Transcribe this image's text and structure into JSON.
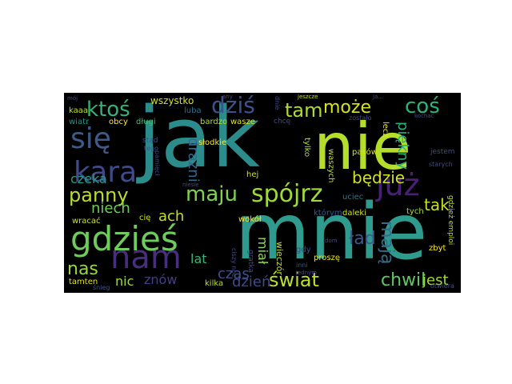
{
  "words": [
    {
      "id": "jak",
      "text": "jak",
      "color": "#2c8c8c"
    },
    {
      "id": "nie",
      "text": "nie",
      "color": "#b4dd2c"
    },
    {
      "id": "mnie",
      "text": "mnie",
      "color": "#2f9a8e"
    },
    {
      "id": "nam",
      "text": "nam",
      "color": "#472f7d"
    },
    {
      "id": "gdzies",
      "text": "gdzieś",
      "color": "#6ccd5a"
    },
    {
      "id": "juz",
      "text": "już",
      "color": "#482173"
    },
    {
      "id": "kara",
      "text": "kara",
      "color": "#3e4a89"
    },
    {
      "id": "sie",
      "text": "się",
      "color": "#3d5b8a"
    },
    {
      "id": "maju",
      "text": "maju",
      "color": "#7fd34e"
    },
    {
      "id": "spojrz",
      "text": "spójrz",
      "color": "#a0da39"
    },
    {
      "id": "cos",
      "text": "coś",
      "color": "#2db27d"
    },
    {
      "id": "ktos",
      "text": "ktoś",
      "color": "#33b27a"
    },
    {
      "id": "dzis",
      "text": "dziś",
      "color": "#3b528b"
    },
    {
      "id": "tam",
      "text": "tam",
      "color": "#addc30"
    },
    {
      "id": "moze",
      "text": "może",
      "color": "#d8e219"
    },
    {
      "id": "panny",
      "text": "panny",
      "color": "#b8de29"
    },
    {
      "id": "swiat",
      "text": "świat",
      "color": "#bddf26"
    },
    {
      "id": "chwil",
      "text": "chwil",
      "color": "#5ec962"
    },
    {
      "id": "jest",
      "text": "jest",
      "color": "#9bd93c"
    },
    {
      "id": "nas",
      "text": "nas",
      "color": "#95d840"
    },
    {
      "id": "niech",
      "text": "niech",
      "color": "#6ece58"
    },
    {
      "id": "lad",
      "text": "ład",
      "color": "#38598c"
    },
    {
      "id": "maja",
      "text": "mają",
      "color": "#2f6c8e"
    },
    {
      "id": "tak",
      "text": "tak",
      "color": "#c8e020"
    },
    {
      "id": "bedzie",
      "text": "będzie",
      "color": "#d2e21b"
    },
    {
      "id": "piekny",
      "text": "piękny",
      "color": "#29af7f"
    },
    {
      "id": "czeka",
      "text": "czeka",
      "color": "#1f9e89"
    },
    {
      "id": "drazni",
      "text": "drażni",
      "color": "#31688e"
    },
    {
      "id": "ach",
      "text": "ach",
      "color": "#c2df23"
    },
    {
      "id": "czas",
      "text": "czas",
      "color": "#3b528b"
    },
    {
      "id": "dzien",
      "text": "dzień",
      "color": "#3e4a89"
    },
    {
      "id": "nic",
      "text": "nic",
      "color": "#9fda3a"
    },
    {
      "id": "znow",
      "text": "znów",
      "color": "#433e85"
    },
    {
      "id": "lat",
      "text": "lat",
      "color": "#35b779"
    },
    {
      "id": "mial",
      "text": "miał",
      "color": "#8ed645"
    },
    {
      "id": "wieczor",
      "text": "wieczór",
      "color": "#c5e021"
    },
    {
      "id": "wszystko",
      "text": "wszystko",
      "color": "#d0e11c"
    },
    {
      "id": "luba",
      "text": "luba",
      "color": "#2e6f8e"
    },
    {
      "id": "wiatr",
      "text": "wiatr",
      "color": "#21918c"
    },
    {
      "id": "obcy",
      "text": "obcy",
      "color": "#fde725"
    },
    {
      "id": "dlugi",
      "text": "długi",
      "color": "#42be71"
    },
    {
      "id": "bardzo",
      "text": "bardzo",
      "color": "#b5de2b"
    },
    {
      "id": "wasze",
      "text": "wasze",
      "color": "#dde318"
    },
    {
      "id": "slodkie",
      "text": "słodkie",
      "color": "#fde725"
    },
    {
      "id": "kaaa",
      "text": "kaaa",
      "color": "#c0df25"
    },
    {
      "id": "wracac",
      "text": "wracać",
      "color": "#cde11d"
    },
    {
      "id": "cie",
      "text": "cię",
      "color": "#d5e21a"
    },
    {
      "id": "tamten",
      "text": "tamten",
      "color": "#e5e419"
    },
    {
      "id": "kilka",
      "text": "kilka",
      "color": "#bade28"
    },
    {
      "id": "gdy",
      "text": "gdy",
      "color": "#3f4889"
    },
    {
      "id": "prosze",
      "text": "proszę",
      "color": "#f1e51d"
    },
    {
      "id": "zbyt",
      "text": "zbyt",
      "color": "#fde725"
    },
    {
      "id": "daleki",
      "text": "daleki",
      "color": "#d0e11c"
    },
    {
      "id": "ktorym",
      "text": "którym",
      "color": "#39558c"
    },
    {
      "id": "tych",
      "text": "tych",
      "color": "#a2da37"
    },
    {
      "id": "uciec",
      "text": "uciec",
      "color": "#2a788e"
    },
    {
      "id": "lecz",
      "text": "lecz",
      "color": "#e2e418"
    },
    {
      "id": "pasow",
      "text": "pasów",
      "color": "#d8e219"
    },
    {
      "id": "tylko",
      "text": "tylko",
      "color": "#b2dd2d"
    },
    {
      "id": "waszych",
      "text": "waszych",
      "color": "#bade28"
    },
    {
      "id": "hej",
      "text": "hej",
      "color": "#d5e21a"
    },
    {
      "id": "wokol",
      "text": "wokół",
      "color": "#fde725"
    },
    {
      "id": "chce",
      "text": "chcę",
      "color": "#3f4788"
    },
    {
      "id": "zostalo",
      "text": "zostało",
      "color": "#3e4989"
    },
    {
      "id": "jestem",
      "text": "jestem",
      "color": "#3e4989"
    },
    {
      "id": "gdziez_emploi",
      "text": "gdzież emploi",
      "color": "#c2df23"
    },
    {
      "id": "gratka",
      "text": "gratka",
      "color": "#3d4e8a"
    },
    {
      "id": "ciszy_noc",
      "text": "ciszy noc",
      "color": "#3e4a89"
    },
    {
      "id": "inni",
      "text": "inni",
      "color": "#3b528b"
    },
    {
      "id": "jednym",
      "text": "jednym",
      "color": "#3e4a89"
    },
    {
      "id": "snieg",
      "text": "śnieg",
      "color": "#3b528b"
    },
    {
      "id": "dom",
      "text": "dom",
      "color": "#3f4889"
    },
    {
      "id": "otwiera",
      "text": "otwiera",
      "color": "#3e4a89"
    },
    {
      "id": "starych",
      "text": "starych",
      "color": "#3e4a89"
    },
    {
      "id": "stad",
      "text": "stąd",
      "color": "#3b528b"
    },
    {
      "id": "tego",
      "text": "tego",
      "color": "#3b528b"
    },
    {
      "id": "pamieci",
      "text": "pamięci",
      "color": "#3e4a89"
    },
    {
      "id": "niesie",
      "text": "niesie",
      "color": "#3f4889"
    },
    {
      "id": "moj",
      "text": "mój",
      "color": "#3f4889"
    },
    {
      "id": "any",
      "text": "any",
      "color": "#3e4a89"
    },
    {
      "id": "jeszcze",
      "text": "jeszcze",
      "color": "#c2df23"
    },
    {
      "id": "ja",
      "text": "ja...",
      "color": "#3e4a89"
    },
    {
      "id": "kochac",
      "text": "kochać",
      "color": "#3e4a89"
    },
    {
      "id": "dnie",
      "text": "dnie",
      "color": "#3e4a89"
    }
  ]
}
